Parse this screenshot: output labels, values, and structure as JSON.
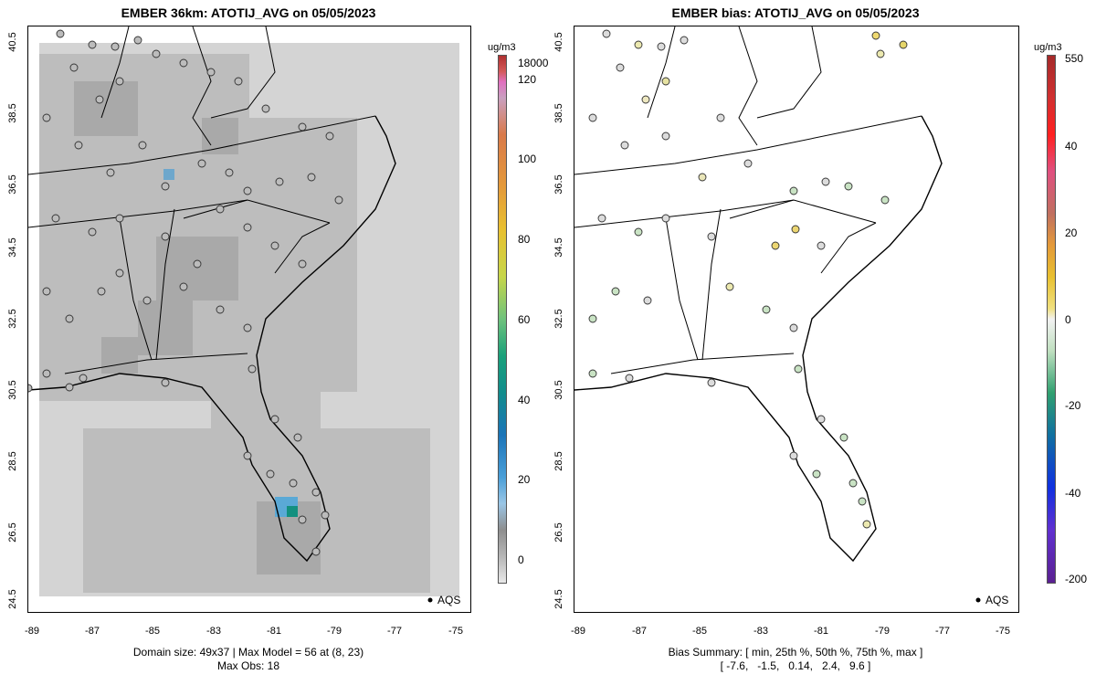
{
  "left_map": {
    "title": "EMBER 36km: ATOTIJ_AVG on 05/05/2023",
    "unit": "ug/m3",
    "colorbar_labels": [
      "18000",
      "120",
      "100",
      "80",
      "60",
      "40",
      "20",
      "0"
    ],
    "footer_line1": "Domain size: 49x37 | Max Model = 56 at (8, 23)",
    "footer_line2": "Max Obs: 18",
    "legend": "AQS"
  },
  "right_map": {
    "title": "EMBER bias: ATOTIJ_AVG on 05/05/2023",
    "unit": "ug/m3",
    "colorbar_labels": [
      "550",
      "40",
      "20",
      "0",
      "-20",
      "-40",
      "-200"
    ],
    "footer_line1": "Bias Summary: [ min, 25th %, 50th %, 75th %, max ]",
    "footer_line2": "[ -7.6,   -1.5,   0.14,   2.4,   9.6 ]",
    "legend": "AQS"
  },
  "axes": {
    "x_ticks": [
      "-89",
      "-87",
      "-85",
      "-83",
      "-81",
      "-79",
      "-77",
      "-75"
    ],
    "y_ticks": [
      "40.5",
      "38.5",
      "36.5",
      "34.5",
      "32.5",
      "30.5",
      "28.5",
      "26.5",
      "24.5"
    ]
  },
  "colors": {
    "grid_light": "#d6d6d6",
    "grid_mid": "#bebebe",
    "grid_dark": "#a9a9a9",
    "accent_blue": "#5aa9d6",
    "accent_teal": "#13907f"
  }
}
